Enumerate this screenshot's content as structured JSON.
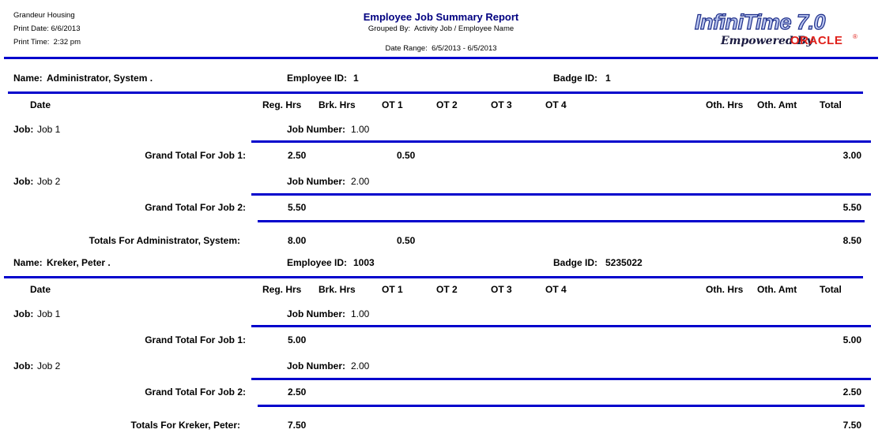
{
  "header": {
    "company": "Grandeur Housing",
    "print_date": "Print Date: 6/6/2013",
    "print_time": "Print Time:  2:32 pm",
    "title": "Employee Job Summary Report",
    "grouped_by": "Grouped By:  Activity Job / Employee Name",
    "date_range": "Date Range:  6/5/2013 - 6/5/2013"
  },
  "logo": {
    "product": "InfiniTime 7.0",
    "tagline": "Empowered By",
    "brand": "ORACLE",
    "mark": "®"
  },
  "labels": {
    "name": "Name:",
    "employee_id": "Employee ID:",
    "badge_id": "Badge ID:",
    "job": "Job:",
    "job_number": "Job Number:"
  },
  "columns": [
    "Date",
    "Reg. Hrs",
    "Brk. Hrs",
    "OT 1",
    "OT 2",
    "OT 3",
    "OT 4",
    "Oth. Hrs",
    "Oth. Amt",
    "Total"
  ],
  "employees": [
    {
      "name": "Administrator, System .",
      "employee_id": "1",
      "badge_id": "1",
      "jobs": [
        {
          "job": "Job 1",
          "job_number": "1.00",
          "total_label": "Grand Total For Job 1:",
          "cells": [
            null,
            "2.50",
            null,
            "0.50",
            null,
            null,
            null,
            null,
            null,
            "3.00"
          ]
        },
        {
          "job": "Job 2",
          "job_number": "2.00",
          "total_label": "Grand Total For Job 2:",
          "cells": [
            null,
            "5.50",
            null,
            null,
            null,
            null,
            null,
            null,
            null,
            "5.50"
          ]
        }
      ],
      "totals_label": "Totals For Administrator, System:",
      "totals": [
        null,
        "8.00",
        null,
        "0.50",
        null,
        null,
        null,
        null,
        null,
        "8.50"
      ]
    },
    {
      "name": "Kreker, Peter .",
      "employee_id": "1003",
      "badge_id": "5235022",
      "jobs": [
        {
          "job": "Job 1",
          "job_number": "1.00",
          "total_label": "Grand Total For Job 1:",
          "cells": [
            null,
            "5.00",
            null,
            null,
            null,
            null,
            null,
            null,
            null,
            "5.00"
          ]
        },
        {
          "job": "Job 2",
          "job_number": "2.00",
          "total_label": "Grand Total For Job 2:",
          "cells": [
            null,
            "2.50",
            null,
            null,
            null,
            null,
            null,
            null,
            null,
            "2.50"
          ]
        }
      ],
      "totals_label": "Totals For Kreker, Peter:",
      "totals": [
        null,
        "7.50",
        null,
        null,
        null,
        null,
        null,
        null,
        null,
        "7.50"
      ]
    }
  ]
}
